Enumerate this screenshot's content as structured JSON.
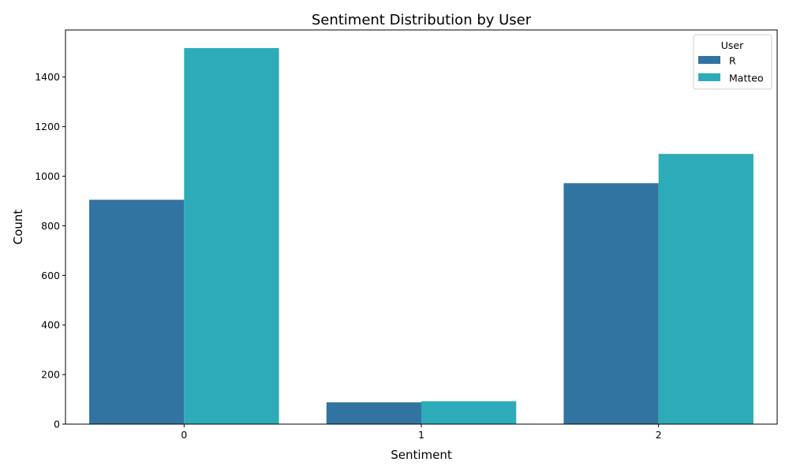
{
  "chart_data": {
    "type": "bar",
    "title": "Sentiment Distribution by User",
    "xlabel": "Sentiment",
    "ylabel": "Count",
    "categories": [
      "0",
      "1",
      "2"
    ],
    "series": [
      {
        "name": "R",
        "values": [
          905,
          88,
          972
        ],
        "color": "#3274a1"
      },
      {
        "name": "Matteo",
        "values": [
          1517,
          92,
          1090
        ],
        "color": "#2eabb8"
      }
    ],
    "ylim": [
      0,
      1590
    ],
    "yticks": [
      0,
      200,
      400,
      600,
      800,
      1000,
      1200,
      1400
    ],
    "grid": false,
    "legend": {
      "title": "User",
      "position": "top-right"
    }
  }
}
